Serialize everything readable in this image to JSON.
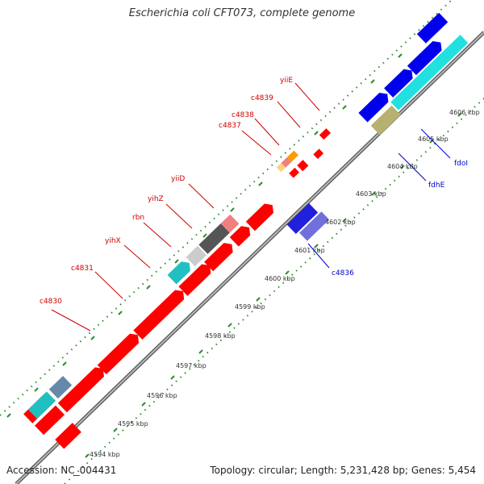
{
  "title": "Escherichia coli CFT073, complete genome",
  "footer": {
    "accession": "Accession: NC_004431",
    "stats": "Topology: circular; Length: 5,231,428 bp; Genes: 5,454"
  },
  "colors": {
    "backbone": "#8c8c8c",
    "top_gene_label": "#cc0000",
    "bottom_gene_label": "#0000cc",
    "tick_dotted": "#2e8b2e"
  },
  "ticks": [
    {
      "label": "4594 kbp"
    },
    {
      "label": "4595 kbp"
    },
    {
      "label": "4596 kbp"
    },
    {
      "label": "4597 kbp"
    },
    {
      "label": "4598 kbp"
    },
    {
      "label": "4599 kbp"
    },
    {
      "label": "4600 kbp"
    },
    {
      "label": "4601 kbp"
    },
    {
      "label": "4602 kbp"
    },
    {
      "label": "4603 kbp"
    },
    {
      "label": "4604 kbp"
    },
    {
      "label": "4605 kbp"
    },
    {
      "label": "4606 kbp"
    }
  ],
  "top_labels": [
    "c4830",
    "c4831",
    "yihX",
    "rbn",
    "yihZ",
    "yiiD",
    "c4837",
    "c4838",
    "c4839",
    "yiiE"
  ],
  "bottom_labels": [
    "c4836",
    "fdhE",
    "fdoI"
  ]
}
